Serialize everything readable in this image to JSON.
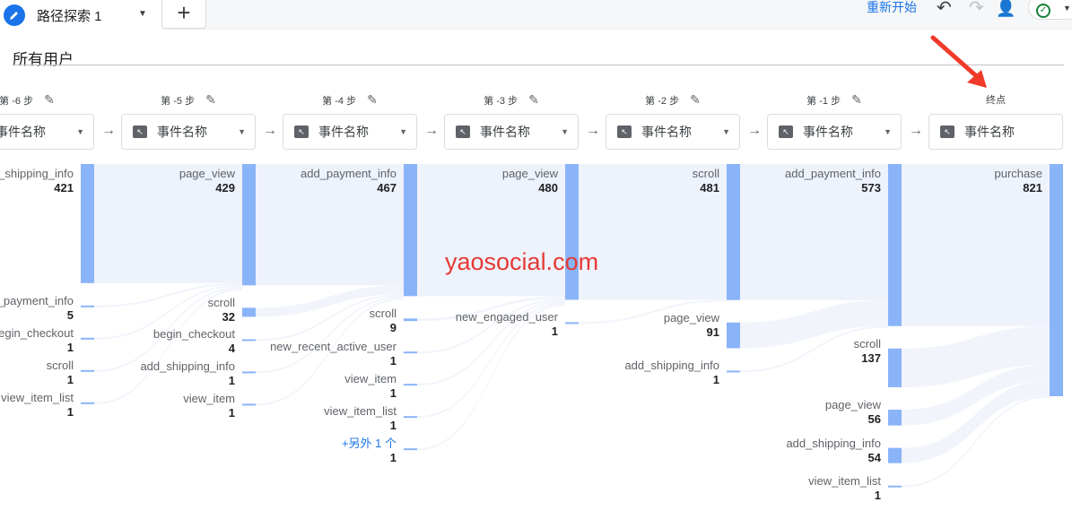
{
  "tab": {
    "title": "路径探索 1",
    "add": "+"
  },
  "toolbar": {
    "restart": "重新开始",
    "undo_icon": "undo-icon",
    "redo_icon": "redo-icon",
    "share_icon": "person-add-icon",
    "status_icon": "check-circle-icon"
  },
  "segment": "所有用户",
  "event_label": "事件名称",
  "steps": [
    {
      "label": "第 -6 步",
      "editable": true,
      "dropdown": true
    },
    {
      "label": "第 -5 步",
      "editable": true,
      "dropdown": true
    },
    {
      "label": "第 -4 步",
      "editable": true,
      "dropdown": true
    },
    {
      "label": "第 -3 步",
      "editable": true,
      "dropdown": true
    },
    {
      "label": "第 -2 步",
      "editable": true,
      "dropdown": true
    },
    {
      "label": "第 -1 步",
      "editable": true,
      "dropdown": true
    },
    {
      "label": "终点",
      "editable": false,
      "dropdown": false
    }
  ],
  "columns": [
    [
      {
        "name": "add_shipping_info",
        "value": 421
      },
      {
        "name": "add_payment_info",
        "value": 5
      },
      {
        "name": "begin_checkout",
        "value": 1
      },
      {
        "name": "scroll",
        "value": 1
      },
      {
        "name": "view_item_list",
        "value": 1
      }
    ],
    [
      {
        "name": "page_view",
        "value": 429
      },
      {
        "name": "scroll",
        "value": 32
      },
      {
        "name": "begin_checkout",
        "value": 4
      },
      {
        "name": "add_shipping_info",
        "value": 1
      },
      {
        "name": "view_item",
        "value": 1
      }
    ],
    [
      {
        "name": "add_payment_info",
        "value": 467
      },
      {
        "name": "scroll",
        "value": 9
      },
      {
        "name": "new_recent_active_user",
        "value": 1
      },
      {
        "name": "view_item",
        "value": 1
      },
      {
        "name": "view_item_list",
        "value": 1
      },
      {
        "name": "+另外 1 个",
        "value": 1,
        "more": true
      }
    ],
    [
      {
        "name": "page_view",
        "value": 480
      },
      {
        "name": "new_engaged_user",
        "value": 1
      }
    ],
    [
      {
        "name": "scroll",
        "value": 481
      },
      {
        "name": "page_view",
        "value": 91
      },
      {
        "name": "add_shipping_info",
        "value": 1
      }
    ],
    [
      {
        "name": "add_payment_info",
        "value": 573
      },
      {
        "name": "scroll",
        "value": 137
      },
      {
        "name": "page_view",
        "value": 56
      },
      {
        "name": "add_shipping_info",
        "value": 54
      },
      {
        "name": "view_item_list",
        "value": 1
      }
    ],
    [
      {
        "name": "purchase",
        "value": 821
      }
    ]
  ],
  "colors": {
    "node": "#8ab4f8",
    "link": "#e8eefb",
    "accent": "#1a73e8"
  },
  "watermark": "yaosocial.com"
}
